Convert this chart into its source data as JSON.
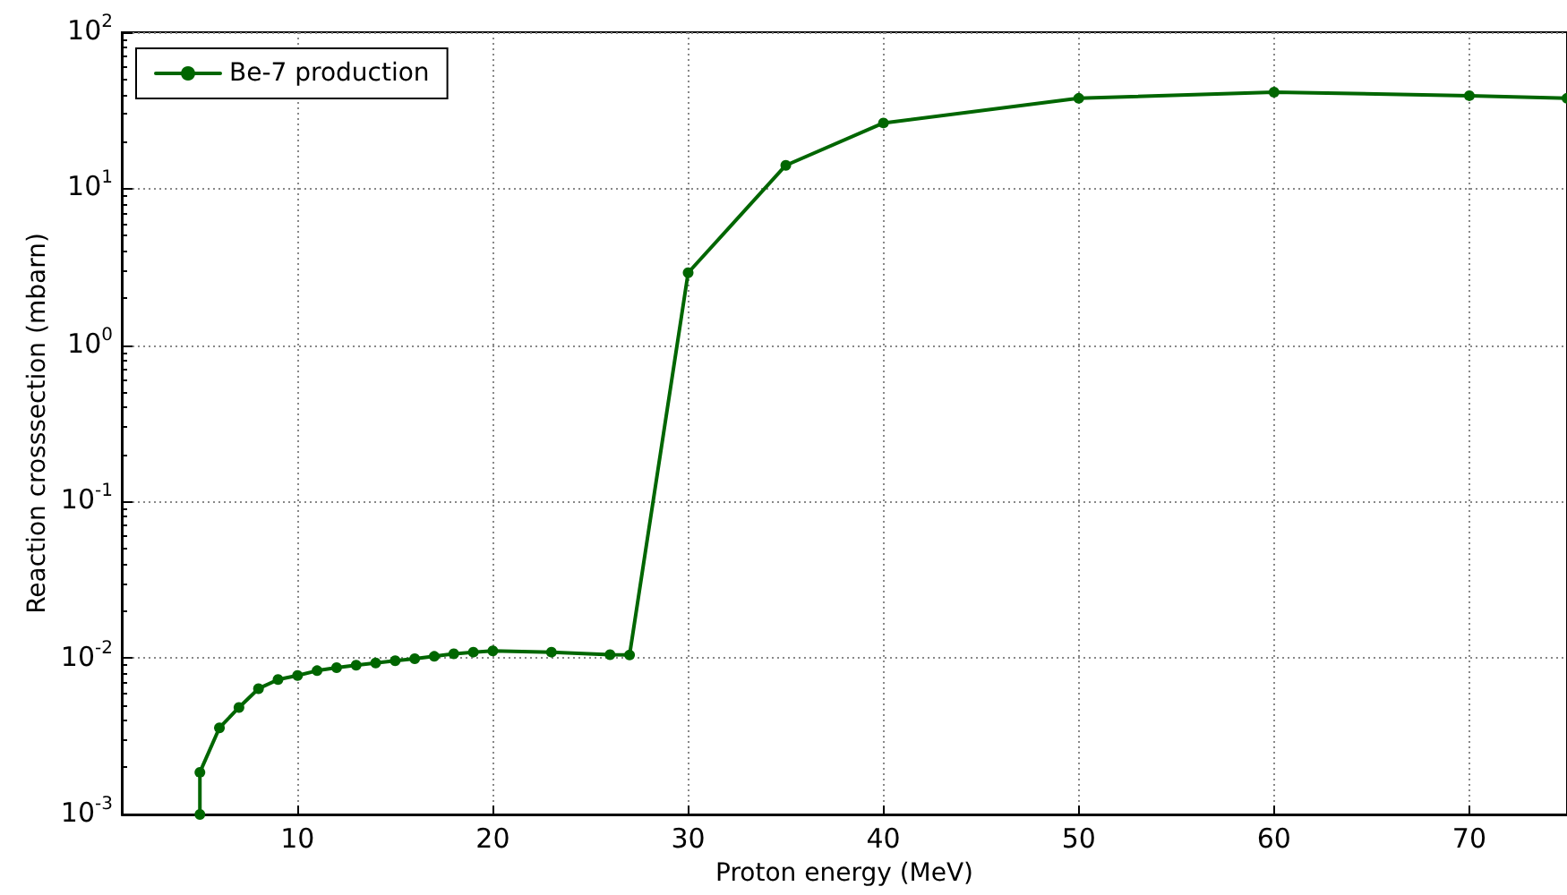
{
  "chart_data": {
    "type": "line",
    "xlabel": "Proton energy (MeV)",
    "ylabel": "Reaction crosssection (mbarn)",
    "x": [
      5,
      5,
      6,
      7,
      8,
      9,
      10,
      11,
      12,
      13,
      14,
      15,
      16,
      17,
      18,
      19,
      20,
      23,
      26,
      27,
      30,
      35,
      40,
      50,
      60,
      70,
      75
    ],
    "series": [
      {
        "name": "Be-7 production",
        "color": "#006600",
        "values": [
          0.001,
          0.00186,
          0.00358,
          0.00483,
          0.00637,
          0.00728,
          0.00773,
          0.0083,
          0.00867,
          0.009,
          0.0093,
          0.0096,
          0.0099,
          0.01025,
          0.01064,
          0.0109,
          0.0111,
          0.0109,
          0.0105,
          0.01045,
          2.9,
          14.1,
          26.3,
          37.8,
          41.4,
          39.3,
          37.8
        ]
      }
    ],
    "log": "y",
    "xlim": [
      1,
      75
    ],
    "xticks": [
      10,
      20,
      30,
      40,
      50,
      60,
      70
    ],
    "ylim": [
      0.001,
      100
    ],
    "yticks": [
      {
        "value": 0.001,
        "label": "10$^{-3}$"
      },
      {
        "value": 0.01,
        "label": "10$^{-2}$"
      },
      {
        "value": 0.1,
        "label": "10$^{-1}$"
      },
      {
        "value": 1,
        "label": "10$^{0}$"
      },
      {
        "value": 10,
        "label": "10$^{1}$"
      },
      {
        "value": 100,
        "label": "10$^{2}$"
      }
    ],
    "grid": true,
    "legend": "top left",
    "marker": "circle",
    "line_style": "solid"
  }
}
